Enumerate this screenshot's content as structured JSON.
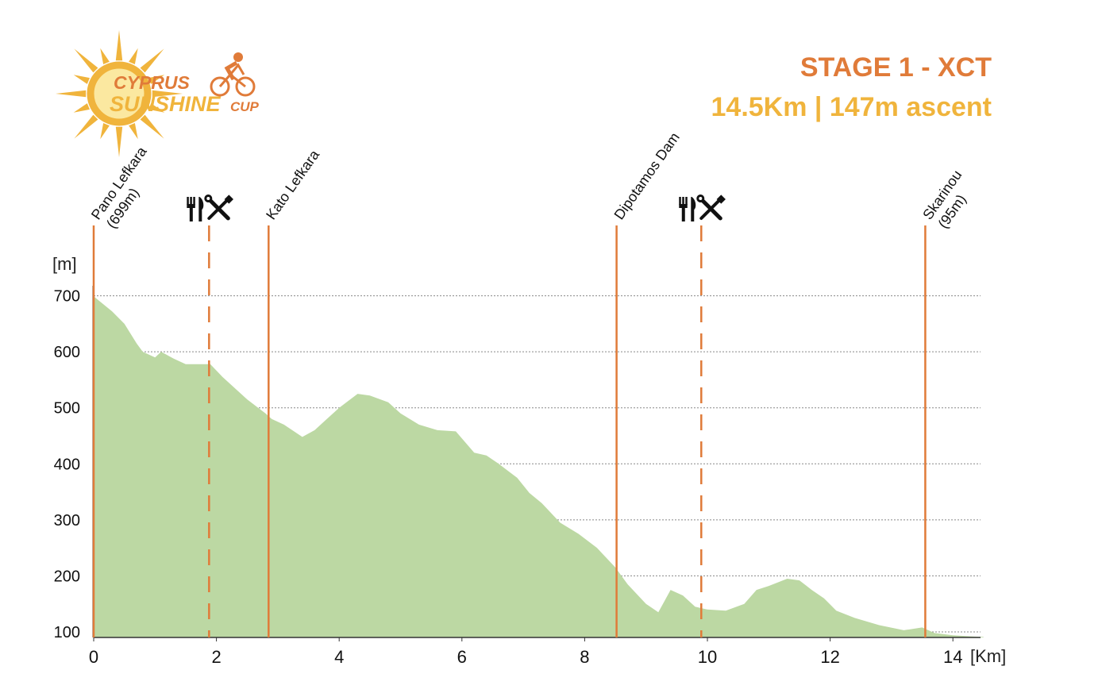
{
  "header": {
    "stage_title": "STAGE 1 - XCT",
    "stage_subtitle": "14.5Km | 147m ascent",
    "logo_line1": "CYPRUS",
    "logo_line2": "SUNSHINE",
    "logo_line3": "CUP"
  },
  "colors": {
    "title": "#e07b39",
    "subtitle": "#f0b43c",
    "marker": "#e07b39",
    "fill": "#bcd8a3",
    "grid": "#888888",
    "axis": "#333333"
  },
  "chart_data": {
    "type": "area",
    "title": "",
    "xlabel": "[Km]",
    "ylabel": "[m]",
    "xlim": [
      0,
      14.5
    ],
    "ylim": [
      90,
      700
    ],
    "x_ticks": [
      0,
      2,
      4,
      6,
      8,
      10,
      12,
      14
    ],
    "y_ticks": [
      100,
      200,
      300,
      400,
      500,
      600,
      700
    ],
    "grid": "horizontal dotted",
    "series": [
      {
        "x": [
          0,
          0.1,
          0.3,
          0.5,
          0.7,
          0.8,
          1.0,
          1.1,
          1.3,
          1.5,
          1.9,
          2.1,
          2.3,
          2.5,
          2.8,
          2.9,
          3.1,
          3.4,
          3.6,
          3.8,
          4.0,
          4.3,
          4.5,
          4.8,
          5.0,
          5.3,
          5.6,
          5.9,
          6.2,
          6.4,
          6.6,
          6.9,
          7.1,
          7.3,
          7.6,
          7.9,
          8.2,
          8.5,
          8.7,
          9.0,
          9.2,
          9.3,
          9.4,
          9.6,
          9.8,
          10.0,
          10.3,
          10.6,
          10.8,
          11.0,
          11.3,
          11.5,
          11.7,
          11.9,
          12.1,
          12.4,
          12.8,
          13.2,
          13.5,
          13.7,
          14.0,
          14.3,
          14.5
        ],
        "y": [
          699,
          690,
          672,
          650,
          615,
          600,
          590,
          600,
          588,
          578,
          578,
          555,
          535,
          515,
          490,
          480,
          470,
          448,
          460,
          480,
          500,
          525,
          522,
          510,
          490,
          470,
          460,
          458,
          420,
          415,
          400,
          375,
          348,
          330,
          295,
          275,
          250,
          215,
          185,
          150,
          135,
          155,
          175,
          165,
          145,
          140,
          138,
          150,
          175,
          182,
          195,
          192,
          175,
          160,
          138,
          125,
          112,
          103,
          108,
          98,
          94,
          92,
          91
        ]
      }
    ],
    "annotations": [
      {
        "x": 0,
        "line1": "Pano Lefkara",
        "line2": "(699m)",
        "style": "solid"
      },
      {
        "x": 1.88,
        "style": "dashed",
        "label": "feed-zone-1"
      },
      {
        "x": 2.85,
        "line1": "Kato Lefkara",
        "line2": "",
        "style": "solid"
      },
      {
        "x": 8.52,
        "line1": "Dipotamos Dam",
        "line2": "",
        "style": "solid"
      },
      {
        "x": 9.9,
        "style": "dashed",
        "label": "feed-zone-2"
      },
      {
        "x": 13.55,
        "line1": "Skarinou",
        "line2": "(95m)",
        "style": "solid"
      }
    ]
  }
}
